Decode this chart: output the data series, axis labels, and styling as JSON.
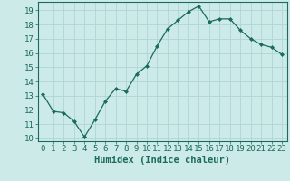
{
  "x": [
    0,
    1,
    2,
    3,
    4,
    5,
    6,
    7,
    8,
    9,
    10,
    11,
    12,
    13,
    14,
    15,
    16,
    17,
    18,
    19,
    20,
    21,
    22,
    23
  ],
  "y": [
    13.1,
    11.9,
    11.8,
    11.2,
    10.1,
    11.3,
    12.6,
    13.5,
    13.3,
    14.5,
    15.1,
    16.5,
    17.7,
    18.3,
    18.9,
    19.3,
    18.2,
    18.4,
    18.4,
    17.6,
    17.0,
    16.6,
    16.4,
    15.9
  ],
  "xlabel": "Humidex (Indice chaleur)",
  "xlim": [
    -0.5,
    23.5
  ],
  "ylim": [
    9.8,
    19.6
  ],
  "yticks": [
    10,
    11,
    12,
    13,
    14,
    15,
    16,
    17,
    18,
    19
  ],
  "xticks": [
    0,
    1,
    2,
    3,
    4,
    5,
    6,
    7,
    8,
    9,
    10,
    11,
    12,
    13,
    14,
    15,
    16,
    17,
    18,
    19,
    20,
    21,
    22,
    23
  ],
  "line_color": "#1a6b5a",
  "marker_color": "#1a6b5a",
  "bg_color": "#cceae8",
  "grid_color": "#b0d5d3",
  "tick_label_color": "#1a6b5a",
  "xlabel_color": "#1a6b5a",
  "font_size": 6.5,
  "xlabel_fontsize": 7.5
}
